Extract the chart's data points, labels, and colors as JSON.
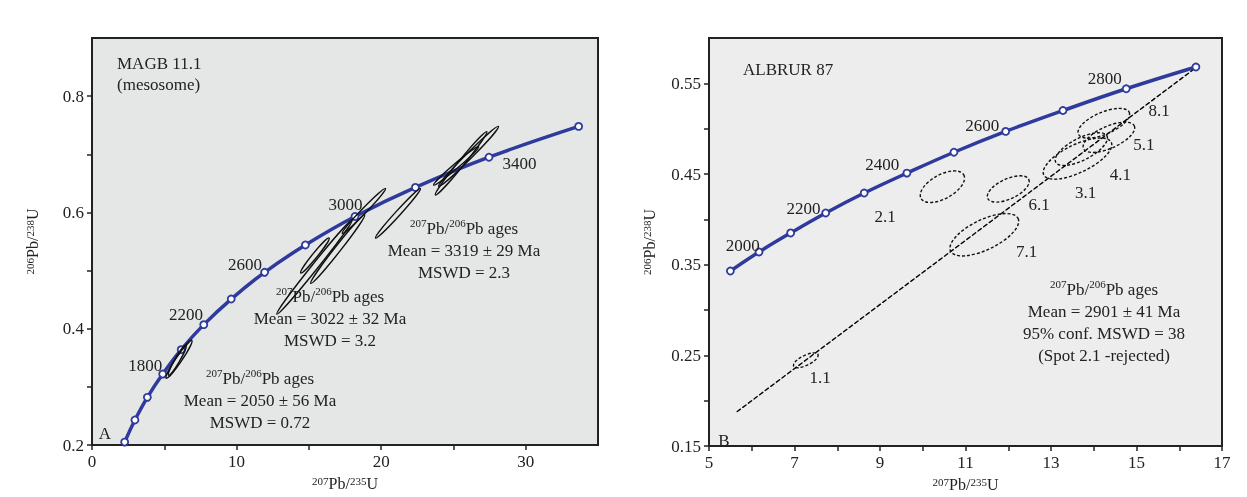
{
  "chart_data": [
    {
      "type": "line",
      "title": "MAGB 11.1",
      "subtitle": "(mesosome)",
      "xlabel": "$^{207}$Pb/$^{235}$U",
      "ylabel": "$^{206}$Pb/$^{238}$U",
      "xlim": [
        0,
        35
      ],
      "ylim": [
        0.2,
        0.9
      ],
      "xticks": [
        0,
        {
          "value": 5,
          "label": null
        },
        10,
        {
          "value": 15,
          "label": null
        },
        20,
        {
          "value": 25,
          "label": null
        },
        30
      ],
      "yticks": [
        0.2,
        {
          "value": 0.3,
          "label": null
        },
        0.4,
        {
          "value": 0.5,
          "label": null
        },
        0.6,
        {
          "value": 0.7,
          "label": null
        },
        0.8
      ],
      "grid": false,
      "marker": "circle",
      "series": [
        {
          "color": "#2e3a9c",
          "x": [
            2.26,
            2.97,
            3.83,
            4.89,
            6.17,
            7.73,
            9.63,
            11.94,
            14.76,
            18.19,
            22.37,
            27.46,
            33.66
          ],
          "values": [
            0.205,
            0.243,
            0.282,
            0.322,
            0.364,
            0.407,
            0.451,
            0.497,
            0.544,
            0.593,
            0.643,
            0.695,
            0.748
          ]
        }
      ],
      "annotations": [
        "A",
        "$^{207}$Pb/$^{206}$Pb ages\nMean = 2050 ± 56 Ma\nMSWD = 0.72",
        "$^{207}$Pb/$^{206}$Pb ages\nMean = 3022 ± 32 Ma\nMSWD = 3.2",
        "$^{207}$Pb/$^{206}$Pb ages\nMean = 3319 ± 29 Ma\nMSWD = 2.3",
        "1800",
        "2200",
        "2600",
        "3000",
        "3400"
      ]
    },
    {
      "type": "line",
      "title": "ALBRUR 87",
      "xlabel": "$^{207}$Pb/$^{235}$U",
      "ylabel": "$^{206}$Pb/$^{238}$U",
      "xlim": [
        5,
        17
      ],
      "ylim": [
        0.15,
        0.6
      ],
      "xticks": [
        5,
        {
          "value": 6,
          "label": null
        },
        7,
        {
          "value": 8,
          "label": null
        },
        9,
        {
          "value": 10,
          "label": null
        },
        11,
        {
          "value": 12,
          "label": null
        },
        13,
        {
          "value": 14,
          "label": null
        },
        15,
        {
          "value": 16,
          "label": null
        },
        17
      ],
      "yticks": [
        0.15,
        {
          "value": 0.2,
          "label": null
        },
        0.25,
        {
          "value": 0.3,
          "label": null
        },
        0.35,
        {
          "value": 0.4,
          "label": null
        },
        0.45,
        {
          "value": 0.5,
          "label": null
        },
        0.55
      ],
      "grid": false,
      "marker": "circle",
      "series": [
        {
          "color": "#2e3a9c",
          "x": [
            5.5,
            6.17,
            6.91,
            7.73,
            8.63,
            9.63,
            10.73,
            11.94,
            13.28,
            14.76,
            16.39
          ],
          "values": [
            0.343,
            0.364,
            0.385,
            0.407,
            0.429,
            0.451,
            0.474,
            0.497,
            0.52,
            0.544,
            0.568
          ]
        },
        {
          "color": "#000000",
          "marker": "none",
          "line_style": "dashed",
          "x": [
            5.66,
            16.41
          ],
          "values": [
            0.188,
            0.568
          ]
        }
      ],
      "annotations": [
        "B",
        "$^{207}$Pb/$^{206}$Pb ages\nMean = 2901 ± 41 Ma\n95% conf. MSWD = 38\n(Spot 2.1 -rejected)",
        "2000",
        "2200",
        "2400",
        "2600",
        "2800",
        "1.1",
        "2.1",
        "6.1",
        "7.1",
        "3.1",
        "4.1",
        "5.1",
        "8.1"
      ]
    }
  ]
}
